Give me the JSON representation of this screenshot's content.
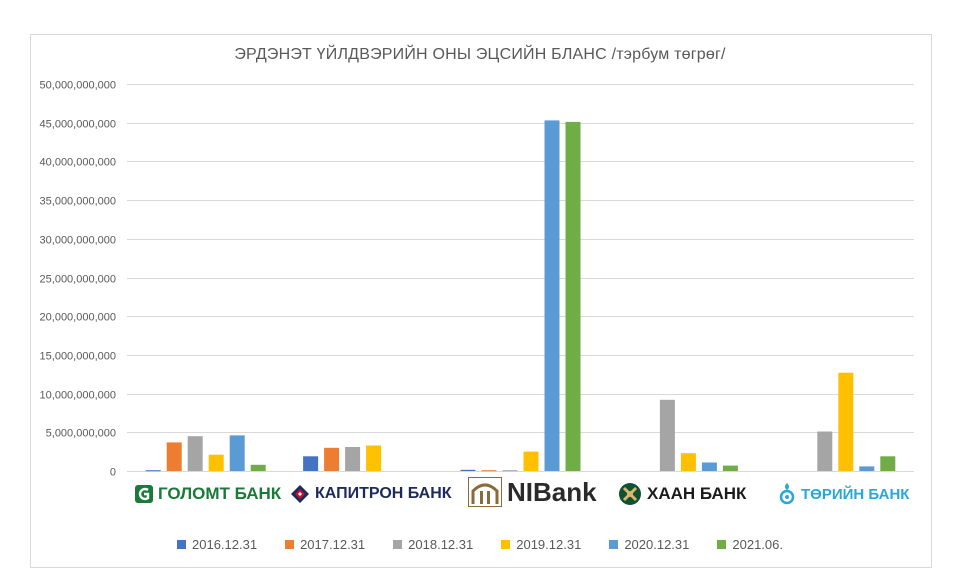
{
  "chart_data": {
    "type": "bar",
    "title": "ЭРДЭНЭТ ҮЙЛДВЭРИЙН ОНЫ ЭЦСИЙН БЛАНС /тэрбум төгрөг/",
    "categories": [
      "ГОЛОМТ БАНК",
      "КАПИТРОН БАНК",
      "NIBank",
      "ХААН БАНК",
      "ТӨРИЙН БАНК"
    ],
    "series": [
      {
        "name": "2016.12.31",
        "color": "#4472c4",
        "values": [
          100000000,
          1900000000,
          150000000,
          0,
          0
        ]
      },
      {
        "name": "2017.12.31",
        "color": "#ed7d31",
        "values": [
          3700000000,
          3000000000,
          100000000,
          0,
          0
        ]
      },
      {
        "name": "2018.12.31",
        "color": "#a5a5a5",
        "values": [
          4500000000,
          3100000000,
          100000000,
          9200000000,
          5100000000
        ]
      },
      {
        "name": "2019.12.31",
        "color": "#ffc000",
        "values": [
          2100000000,
          3300000000,
          2500000000,
          2300000000,
          12700000000
        ]
      },
      {
        "name": "2020.12.31",
        "color": "#5b9bd5",
        "values": [
          4600000000,
          0,
          45300000000,
          1100000000,
          600000000
        ]
      },
      {
        "name": "2021.06.",
        "color": "#70ad47",
        "values": [
          800000000,
          0,
          45100000000,
          700000000,
          1900000000
        ]
      }
    ],
    "y_ticks": [
      "0",
      "5,000,000,000",
      "10,000,000,000",
      "15,000,000,000",
      "20,000,000,000",
      "25,000,000,000",
      "30,000,000,000",
      "35,000,000,000",
      "40,000,000,000",
      "45,000,000,000",
      "50,000,000,000"
    ],
    "ylim": [
      0,
      50000000000
    ],
    "grid": true,
    "legend_position": "bottom"
  },
  "logos": [
    {
      "label": "ГОЛОМТ БАНК",
      "color": "#1a7a3a",
      "icon": "golomt-g-icon"
    },
    {
      "label": "КАПИТРОН БАНК",
      "color": "#1d2a5c",
      "icon": "capitron-diamond-icon"
    },
    {
      "label": "NIBank",
      "color": "#2a2a2a",
      "icon": "nibank-arch-icon"
    },
    {
      "label": "ХААН БАНК",
      "color": "#1b1b1b",
      "icon": "khan-knot-icon"
    },
    {
      "label": "ТӨРИЙН БАНК",
      "color": "#29a8d8",
      "icon": "turiin-soyombo-icon"
    }
  ]
}
